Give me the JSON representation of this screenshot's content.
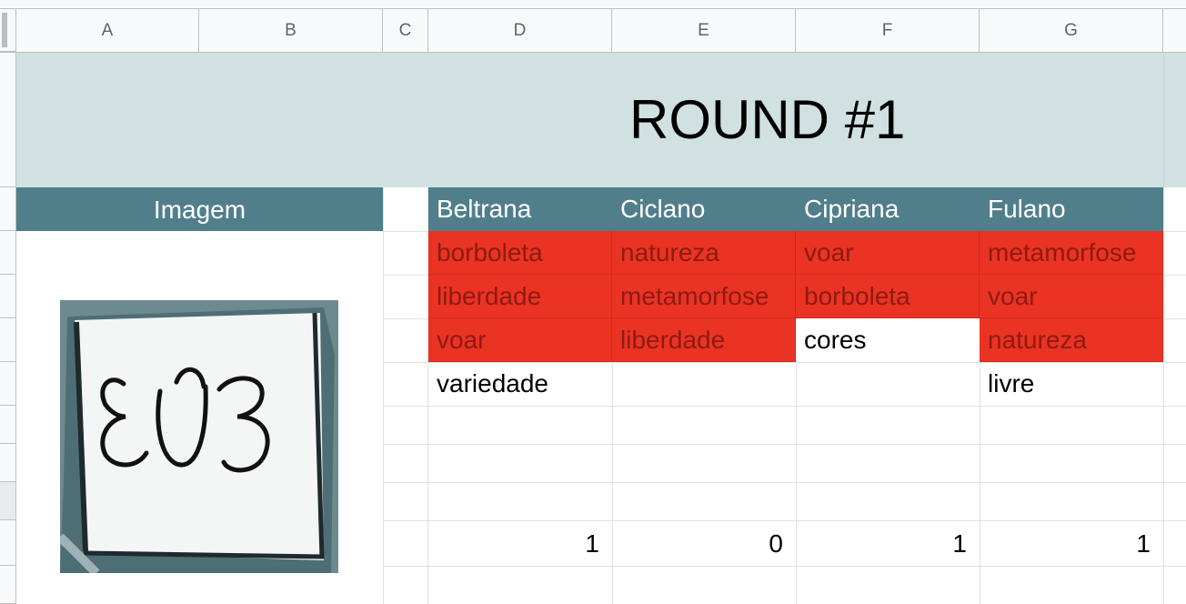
{
  "columns": [
    "A",
    "B",
    "C",
    "D",
    "E",
    "F",
    "G"
  ],
  "title": "ROUND #1",
  "image_header": "Imagem",
  "players": [
    {
      "name": "Beltrana",
      "words": [
        "borboleta",
        "liberdade",
        "voar",
        "variedade"
      ],
      "red": [
        true,
        true,
        true,
        false
      ],
      "score": "1"
    },
    {
      "name": "Ciclano",
      "words": [
        "natureza",
        "metamorfose",
        "liberdade",
        ""
      ],
      "red": [
        true,
        true,
        true,
        false
      ],
      "score": "0"
    },
    {
      "name": "Cipriana",
      "words": [
        "voar",
        "borboleta",
        "cores",
        ""
      ],
      "red": [
        true,
        true,
        false,
        false
      ],
      "score": "1"
    },
    {
      "name": "Fulano",
      "words": [
        "metamorfose",
        "voar",
        "natureza",
        "livre"
      ],
      "red": [
        true,
        true,
        true,
        false
      ],
      "score": "1"
    }
  ],
  "drawing": {
    "alt": "handwritten ƐƱƷ sketch",
    "frame_color": "#3f5f66"
  },
  "colors": {
    "title_bg": "#d1e0e1",
    "header_bg": "#507f8b",
    "red": "#ea3323",
    "red_text": "#8e1b12"
  }
}
